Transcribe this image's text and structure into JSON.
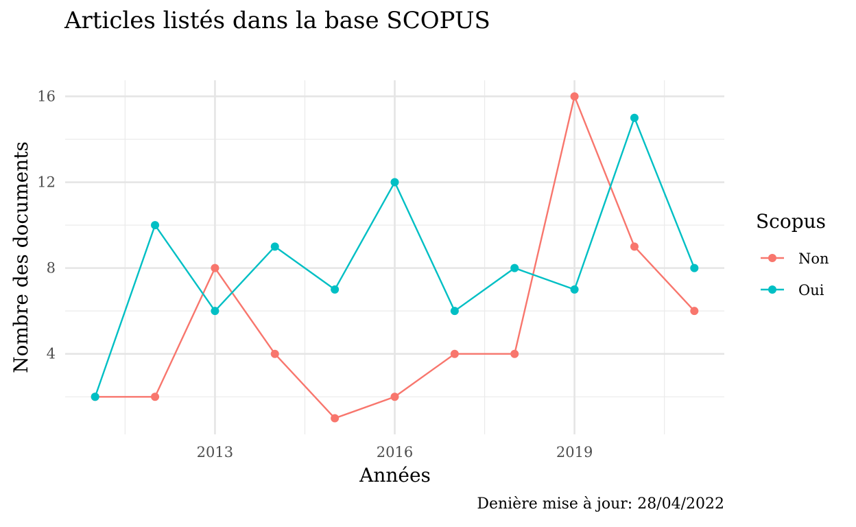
{
  "chart_data": {
    "type": "line",
    "title": "Articles listés dans la base SCOPUS",
    "caption": "Denière mise à jour: 28/04/2022",
    "xlabel": "Années",
    "ylabel": "Nombre des documents",
    "x": [
      2011,
      2012,
      2013,
      2014,
      2015,
      2016,
      2017,
      2018,
      2019,
      2020,
      2021
    ],
    "x_ticks": [
      2013,
      2016,
      2019
    ],
    "y_ticks": [
      4,
      8,
      12,
      16
    ],
    "xlim": [
      2010.5,
      2021.5
    ],
    "ylim": [
      0.25,
      16.75
    ],
    "grid": true,
    "legend": {
      "title": "Scopus",
      "position": "right"
    },
    "series": [
      {
        "name": "Non",
        "color": "#F8766D",
        "values": [
          2,
          2,
          8,
          4,
          1,
          2,
          4,
          4,
          16,
          9,
          6
        ]
      },
      {
        "name": "Oui",
        "color": "#00BFC4",
        "values": [
          2,
          10,
          6,
          9,
          7,
          12,
          6,
          8,
          7,
          15,
          8
        ]
      }
    ]
  }
}
